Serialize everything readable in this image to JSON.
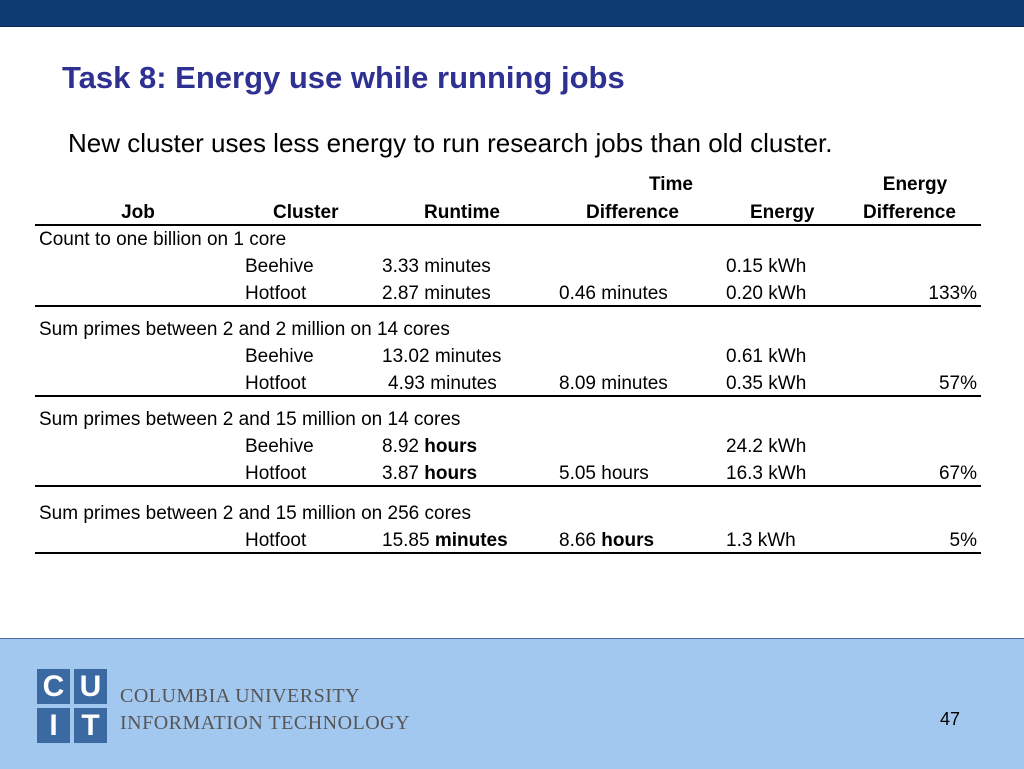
{
  "slide": {
    "title": "Task 8: Energy use while running jobs",
    "subtitle": "New cluster uses less energy to run research jobs than old cluster.",
    "page_number": "47"
  },
  "table": {
    "headers": {
      "job": "Job",
      "cluster": "Cluster",
      "runtime": "Runtime",
      "time_diff_line1": "Time",
      "time_diff_line2": "Difference",
      "energy": "Energy",
      "energy_diff_line1": "Energy",
      "energy_diff_line2": "Difference"
    },
    "groups": [
      {
        "job": "Count to one billion on 1 core",
        "rows": [
          {
            "cluster": "Beehive",
            "runtime_num": "3.33",
            "runtime_unit": "minutes",
            "time_diff_num": "",
            "time_diff_unit": "",
            "energy": "0.15 kWh",
            "energy_diff": ""
          },
          {
            "cluster": "Hotfoot",
            "runtime_num": "2.87",
            "runtime_unit": "minutes",
            "time_diff_num": "0.46",
            "time_diff_unit": "minutes",
            "energy": "0.20 kWh",
            "energy_diff": "133%"
          }
        ]
      },
      {
        "job": "Sum primes between 2 and 2 million on 14 cores",
        "rows": [
          {
            "cluster": "Beehive",
            "runtime_num": "13.02",
            "runtime_unit": "minutes",
            "time_diff_num": "",
            "time_diff_unit": "",
            "energy": "0.61 kWh",
            "energy_diff": ""
          },
          {
            "cluster": "Hotfoot",
            "runtime_num": "4.93",
            "runtime_unit": "minutes",
            "time_diff_num": "8.09",
            "time_diff_unit": "minutes",
            "energy": "0.35 kWh",
            "energy_diff": "57%"
          }
        ]
      },
      {
        "job": "Sum primes between 2 and 15 million on 14 cores",
        "rows": [
          {
            "cluster": "Beehive",
            "runtime_num": "8.92",
            "runtime_unit": "hours",
            "time_diff_num": "",
            "time_diff_unit": "",
            "energy": "24.2 kWh",
            "energy_diff": ""
          },
          {
            "cluster": "Hotfoot",
            "runtime_num": "3.87",
            "runtime_unit": "hours",
            "time_diff_num": "5.05",
            "time_diff_unit": "hours",
            "energy": "16.3 kWh",
            "energy_diff": "67%"
          }
        ]
      },
      {
        "job": "Sum primes between 2 and 15 million on 256 cores",
        "rows": [
          {
            "cluster": "Hotfoot",
            "runtime_num": "15.85",
            "runtime_unit": "minutes",
            "time_diff_num": "8.66",
            "time_diff_unit": "hours",
            "energy": "1.3 kWh",
            "energy_diff": "5%"
          }
        ]
      }
    ]
  },
  "footer": {
    "logo_letters": [
      "C",
      "U",
      "I",
      "T"
    ],
    "org_line1": "COLUMBIA UNIVERSITY",
    "org_line2": "INFORMATION TECHNOLOGY"
  },
  "colors": {
    "top_bar": "#0f3b73",
    "title": "#2e3192",
    "footer_bg": "#a3c8f0",
    "logo_blue": "#3b6aa3"
  }
}
